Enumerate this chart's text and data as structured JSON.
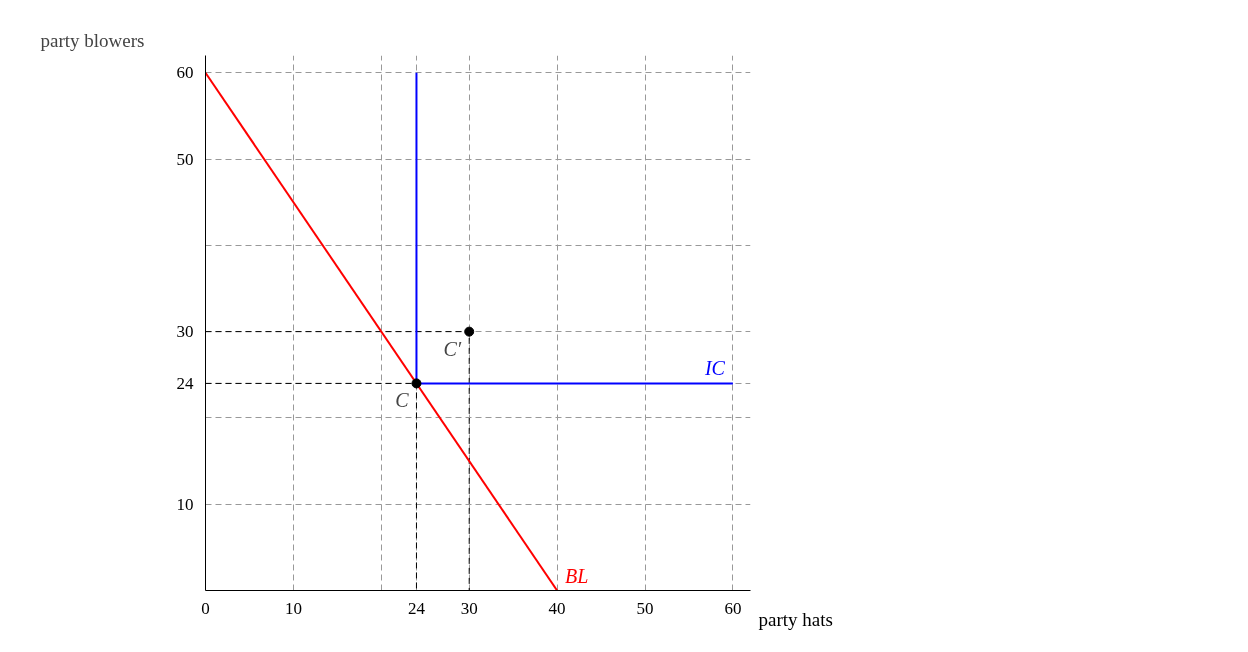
{
  "chart_data": {
    "type": "line",
    "xlabel": "party hats",
    "ylabel": "party blowers",
    "xlim": [
      0,
      62
    ],
    "ylim": [
      0,
      62
    ],
    "xticks": [
      {
        "value": 0,
        "label": "0"
      },
      10,
      {
        "value": 20,
        "label": null
      },
      24,
      30,
      40,
      50,
      60
    ],
    "yticks": [
      {
        "value": 0,
        "label": null
      },
      10,
      {
        "value": 20,
        "label": null
      },
      24,
      30,
      {
        "value": 40,
        "label": null
      },
      50,
      60
    ],
    "grid": true,
    "legend": false,
    "series": [
      {
        "type": "line",
        "color": "#000000",
        "line_style": "dashed",
        "x": [
          0,
          24,
          24
        ],
        "values": [
          24,
          24,
          0
        ]
      },
      {
        "type": "line",
        "color": "#000000",
        "line_style": "dashed",
        "x": [
          0,
          30,
          30
        ],
        "values": [
          30,
          30,
          0
        ]
      },
      {
        "type": "line",
        "name": "BL",
        "color": "#ff0000",
        "line_style": "solid",
        "x": [
          0,
          40
        ],
        "values": [
          60,
          0
        ]
      },
      {
        "type": "line",
        "name": "IC",
        "color": "#0000ff",
        "line_style": "solid",
        "x": [
          24,
          24,
          60
        ],
        "values": [
          60,
          24,
          24
        ]
      },
      {
        "type": "scatter",
        "color": "#000000",
        "marker": "circle",
        "x": [
          24,
          30
        ],
        "values": [
          24,
          30
        ]
      }
    ],
    "annotations": [
      {
        "text": "C",
        "x": 24,
        "y": 24
      },
      {
        "text": "C′",
        "x": 30,
        "y": 30
      }
    ]
  }
}
